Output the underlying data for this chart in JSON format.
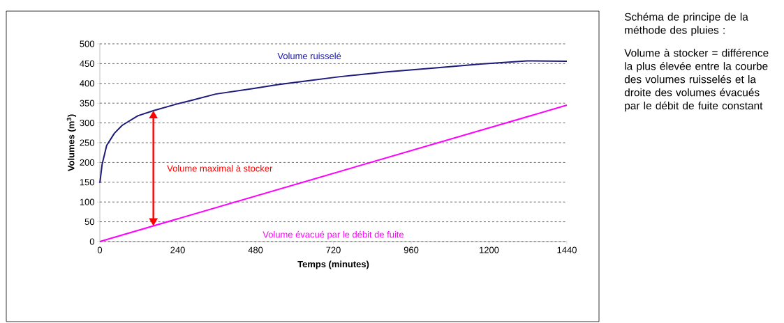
{
  "chart_data": {
    "type": "line",
    "xlabel": "Temps (minutes)",
    "ylabel": "Volumes (m$^{3}$)",
    "xlim": [
      0,
      1440
    ],
    "xticks": [
      0,
      240,
      480,
      720,
      960,
      1200,
      1440
    ],
    "ylim": [
      0,
      500
    ],
    "yticks": [
      0,
      50,
      100,
      150,
      200,
      250,
      300,
      350,
      400,
      450,
      500
    ],
    "grid": "y",
    "legend": false,
    "marker": "none",
    "line_style": "solid",
    "series": [
      {
        "name": "Volume ruisselé",
        "color": "#1c1a7a",
        "x": [
          0,
          7,
          21,
          45,
          69,
          117,
          165,
          234,
          282,
          357,
          472,
          550,
          646,
          741,
          885,
          1030,
          1174,
          1317,
          1440
        ],
        "values": [
          148,
          195,
          243,
          274,
          294,
          318,
          331,
          347,
          357,
          373,
          387,
          397,
          407,
          417,
          429,
          439,
          449,
          457,
          456
        ]
      },
      {
        "name": "Volume évacué par le débit de fuite",
        "color": "#ff00ff",
        "x": [
          0,
          1440
        ],
        "values": [
          0,
          345
        ]
      }
    ],
    "annotations": [
      "Volume maximal à stocker",
      "Schéma de principe de la méthode des pluies :",
      "Volume à stocker = différence la plus élevée entre la courbe des volumes ruisselés et la droite des volumes évacués par le débit de fuite constant"
    ]
  }
}
